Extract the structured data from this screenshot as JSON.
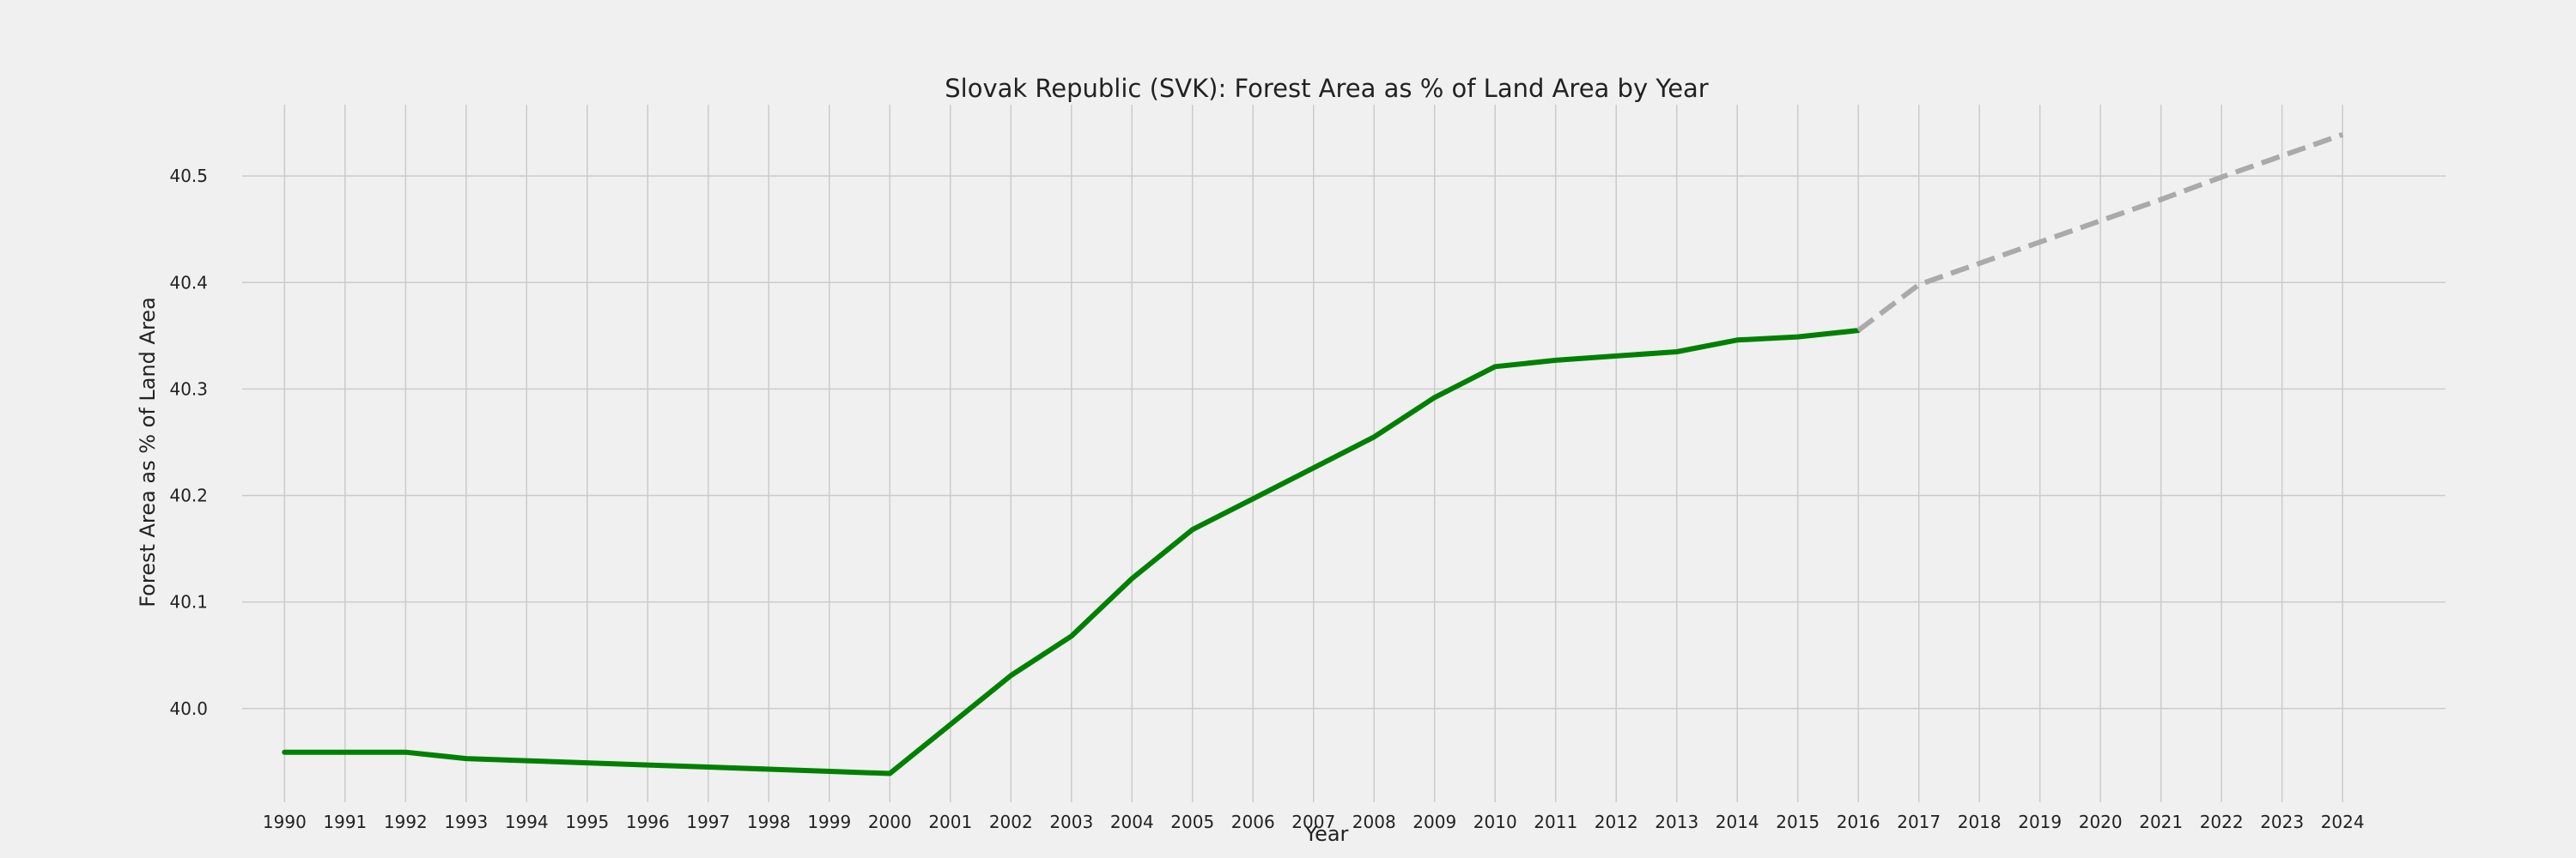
{
  "chart_data": {
    "type": "line",
    "title": "Slovak Republic (SVK): Forest Area as % of Land Area by Year",
    "xlabel": "Year",
    "ylabel": "Forest Area as % of Land Area",
    "x_ticks": [
      "1990",
      "1991",
      "1992",
      "1993",
      "1994",
      "1995",
      "1996",
      "1997",
      "1998",
      "1999",
      "2000",
      "2001",
      "2002",
      "2003",
      "2004",
      "2005",
      "2006",
      "2007",
      "2008",
      "2009",
      "2010",
      "2011",
      "2012",
      "2013",
      "2014",
      "2015",
      "2016",
      "2017",
      "2018",
      "2019",
      "2020",
      "2021",
      "2022",
      "2023",
      "2024"
    ],
    "y_ticks": [
      40.0,
      40.1,
      40.2,
      40.3,
      40.4,
      40.5
    ],
    "y_tick_labels": [
      "40.0",
      "40.1",
      "40.2",
      "40.3",
      "40.4",
      "40.5"
    ],
    "xlim": [
      1989.3,
      2025.7
    ],
    "ylim": [
      39.912,
      40.567
    ],
    "grid": true,
    "series": [
      {
        "style": "solid",
        "color": "#008000",
        "x": [
          1990,
          1991,
          1992,
          1993,
          1994,
          1995,
          1996,
          1997,
          1998,
          1999,
          2000,
          2001,
          2002,
          2003,
          2004,
          2005,
          2006,
          2007,
          2008,
          2009,
          2010,
          2011,
          2012,
          2013,
          2014,
          2015,
          2016
        ],
        "y": [
          39.959,
          39.959,
          39.959,
          39.953,
          39.951,
          39.949,
          39.947,
          39.945,
          39.943,
          39.941,
          39.939,
          39.985,
          40.031,
          40.068,
          40.122,
          40.168,
          40.197,
          40.226,
          40.255,
          40.292,
          40.321,
          40.327,
          40.331,
          40.335,
          40.346,
          40.349,
          40.355
        ]
      },
      {
        "style": "dashed",
        "color": "#aaaaaa",
        "x": [
          2016,
          2017,
          2018,
          2019,
          2020,
          2021,
          2022,
          2023,
          2024
        ],
        "y": [
          40.355,
          40.398,
          40.418,
          40.438,
          40.458,
          40.478,
          40.499,
          40.519,
          40.539
        ]
      }
    ]
  }
}
